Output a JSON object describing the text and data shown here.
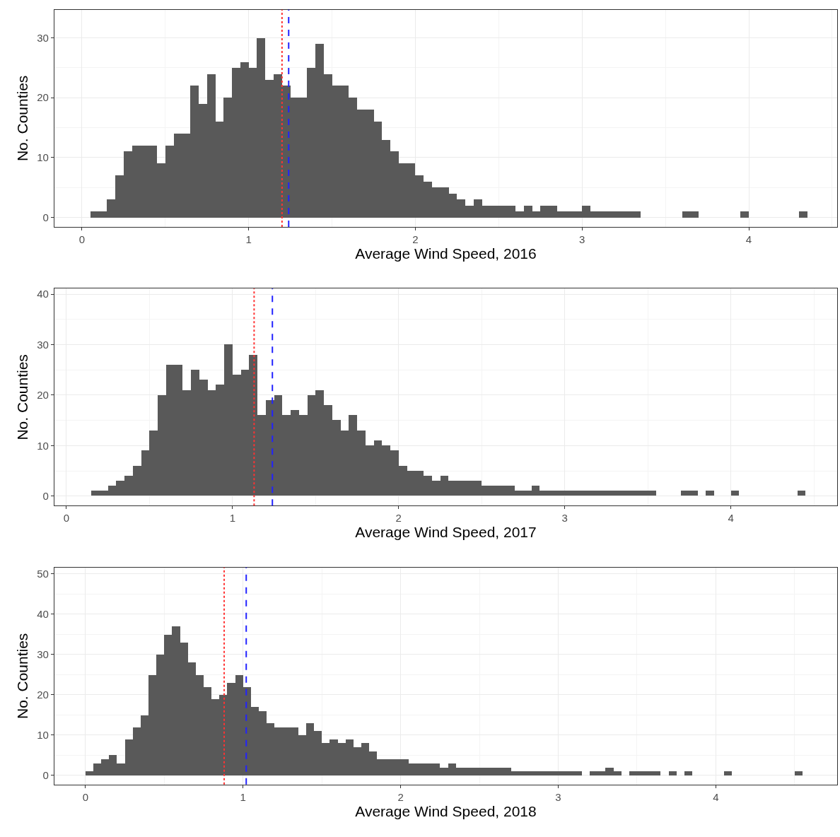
{
  "chart_data": [
    {
      "type": "histogram",
      "xlabel": "Average Wind Speed, 2016",
      "ylabel": "No. Counties",
      "color": "#595959",
      "grid": true,
      "bins": [
        0.05,
        0.1,
        0.15,
        0.2,
        0.25,
        0.3,
        0.35,
        0.4,
        0.45,
        0.5,
        0.55,
        0.6,
        0.65,
        0.7,
        0.75,
        0.8,
        0.85,
        0.9,
        0.95,
        1.0,
        1.05,
        1.1,
        1.15,
        1.2,
        1.25,
        1.3,
        1.35,
        1.4,
        1.45,
        1.5,
        1.55,
        1.6,
        1.65,
        1.7,
        1.75,
        1.8,
        1.85,
        1.9,
        1.95,
        2.0,
        2.05,
        2.1,
        2.15,
        2.2,
        2.25,
        2.3,
        2.35,
        2.4,
        2.45,
        2.5,
        2.55,
        2.6,
        2.65,
        2.7,
        2.75,
        2.8,
        2.85,
        2.9,
        2.95,
        3.0,
        3.05,
        3.1,
        3.15,
        3.2,
        3.25,
        3.3,
        3.35,
        3.4,
        3.45,
        3.5,
        3.55,
        3.6,
        3.65,
        3.7,
        3.75,
        3.8,
        3.85,
        3.9,
        3.95,
        4.0,
        4.05,
        4.1,
        4.15,
        4.2,
        4.25,
        4.3,
        4.35
      ],
      "values": [
        1,
        1,
        3,
        7,
        11,
        12,
        12,
        12,
        9,
        12,
        14,
        14,
        22,
        19,
        24,
        16,
        20,
        25,
        26,
        25,
        30,
        23,
        24,
        22,
        20,
        20,
        25,
        29,
        24,
        22,
        22,
        20,
        18,
        18,
        16,
        13,
        11,
        9,
        9,
        7,
        6,
        5,
        5,
        4,
        3,
        2,
        3,
        2,
        2,
        2,
        2,
        1,
        2,
        1,
        2,
        2,
        1,
        1,
        1,
        2,
        1,
        1,
        1,
        1,
        1,
        1,
        0,
        0,
        0,
        0,
        0,
        1,
        1,
        0,
        0,
        0,
        0,
        0,
        1,
        0,
        0,
        0,
        0,
        0,
        0,
        1
      ],
      "xlim": [
        -0.165,
        4.53
      ],
      "xticks": [
        0,
        1,
        2,
        3,
        4
      ],
      "ylim": [
        -1.6,
        34.7
      ],
      "yticks": [
        0,
        10,
        20,
        30
      ],
      "ref_lines": [
        {
          "axis": "x",
          "value": 1.2,
          "color": "#ff3333",
          "line_style": "dotted"
        },
        {
          "axis": "x",
          "value": 1.24,
          "color": "#2222ff",
          "line_style": "dashed"
        }
      ]
    },
    {
      "type": "histogram",
      "xlabel": "Average Wind Speed, 2017",
      "ylabel": "No. Counties",
      "color": "#595959",
      "grid": true,
      "bins": [
        0.15,
        0.2,
        0.25,
        0.3,
        0.35,
        0.4,
        0.45,
        0.5,
        0.55,
        0.6,
        0.65,
        0.7,
        0.75,
        0.8,
        0.85,
        0.9,
        0.95,
        1.0,
        1.05,
        1.1,
        1.15,
        1.2,
        1.25,
        1.3,
        1.35,
        1.4,
        1.45,
        1.5,
        1.55,
        1.6,
        1.65,
        1.7,
        1.75,
        1.8,
        1.85,
        1.9,
        1.95,
        2.0,
        2.05,
        2.1,
        2.15,
        2.2,
        2.25,
        2.3,
        2.35,
        2.4,
        2.45,
        2.5,
        2.55,
        2.6,
        2.65,
        2.7,
        2.75,
        2.8,
        2.85,
        2.9,
        2.95,
        3.0,
        3.05,
        3.1,
        3.15,
        3.2,
        3.25,
        3.3,
        3.35,
        3.4,
        3.45,
        3.5,
        3.55,
        3.6,
        3.65,
        3.7,
        3.75,
        3.8,
        3.85,
        3.9,
        3.95,
        4.0,
        4.05,
        4.1,
        4.15,
        4.2,
        4.25,
        4.3,
        4.35,
        4.4,
        4.45
      ],
      "values": [
        1,
        1,
        2,
        3,
        4,
        6,
        9,
        13,
        20,
        26,
        26,
        21,
        25,
        23,
        21,
        22,
        30,
        24,
        25,
        28,
        16,
        19,
        20,
        16,
        17,
        16,
        20,
        21,
        18,
        15,
        13,
        16,
        13,
        10,
        11,
        10,
        9,
        6,
        5,
        5,
        4,
        3,
        4,
        3,
        3,
        3,
        3,
        2,
        2,
        2,
        2,
        1,
        1,
        2,
        1,
        1,
        1,
        1,
        1,
        1,
        1,
        1,
        1,
        1,
        1,
        1,
        1,
        1,
        0,
        0,
        0,
        1,
        1,
        0,
        1,
        0,
        0,
        1,
        0,
        0,
        0,
        0,
        0,
        0,
        0,
        1
      ],
      "xlim": [
        -0.072,
        4.64
      ],
      "xticks": [
        0,
        1,
        2,
        3,
        4
      ],
      "ylim": [
        -1.9,
        41.1
      ],
      "yticks": [
        0,
        10,
        20,
        30,
        40
      ],
      "ref_lines": [
        {
          "axis": "x",
          "value": 1.13,
          "color": "#ff3333",
          "line_style": "dotted"
        },
        {
          "axis": "x",
          "value": 1.24,
          "color": "#2222ff",
          "line_style": "dashed"
        }
      ]
    },
    {
      "type": "histogram",
      "xlabel": "Average Wind Speed, 2018",
      "ylabel": "No. Counties",
      "color": "#595959",
      "grid": true,
      "bins": [
        0.0,
        0.05,
        0.1,
        0.15,
        0.2,
        0.25,
        0.3,
        0.35,
        0.4,
        0.45,
        0.5,
        0.55,
        0.6,
        0.65,
        0.7,
        0.75,
        0.8,
        0.85,
        0.9,
        0.95,
        1.0,
        1.05,
        1.1,
        1.15,
        1.2,
        1.25,
        1.3,
        1.35,
        1.4,
        1.45,
        1.5,
        1.55,
        1.6,
        1.65,
        1.7,
        1.75,
        1.8,
        1.85,
        1.9,
        1.95,
        2.0,
        2.05,
        2.1,
        2.15,
        2.2,
        2.25,
        2.3,
        2.35,
        2.4,
        2.45,
        2.5,
        2.55,
        2.6,
        2.65,
        2.7,
        2.75,
        2.8,
        2.85,
        2.9,
        2.95,
        3.0,
        3.05,
        3.1,
        3.15,
        3.2,
        3.25,
        3.3,
        3.35,
        3.4,
        3.45,
        3.5,
        3.55,
        3.6,
        3.65,
        3.7,
        3.75,
        3.8,
        3.85,
        3.9,
        3.95,
        4.0,
        4.05,
        4.1,
        4.15,
        4.2,
        4.25,
        4.3,
        4.35,
        4.4,
        4.45,
        4.5,
        4.55
      ],
      "values": [
        1,
        3,
        4,
        5,
        3,
        9,
        12,
        15,
        25,
        30,
        35,
        37,
        33,
        28,
        25,
        22,
        19,
        20,
        23,
        25,
        22,
        17,
        16,
        13,
        12,
        12,
        12,
        10,
        13,
        11,
        8,
        9,
        8,
        9,
        7,
        8,
        6,
        4,
        4,
        4,
        4,
        3,
        3,
        3,
        3,
        2,
        3,
        2,
        2,
        2,
        2,
        2,
        2,
        2,
        1,
        1,
        1,
        1,
        1,
        1,
        1,
        1,
        1,
        0,
        1,
        1,
        2,
        1,
        0,
        1,
        1,
        1,
        1,
        0,
        1,
        0,
        1,
        0,
        0,
        0,
        0,
        1,
        0,
        0,
        0,
        0,
        0,
        0,
        0,
        0,
        1
      ],
      "xlim": [
        -0.197,
        4.77
      ],
      "xticks": [
        0,
        1,
        2,
        3,
        4
      ],
      "ylim": [
        -2.3,
        51.6
      ],
      "yticks": [
        0,
        10,
        20,
        30,
        40,
        50
      ],
      "ref_lines": [
        {
          "axis": "x",
          "value": 0.88,
          "color": "#ff3333",
          "line_style": "dotted"
        },
        {
          "axis": "x",
          "value": 1.02,
          "color": "#2222ff",
          "line_style": "dashed"
        }
      ]
    }
  ]
}
